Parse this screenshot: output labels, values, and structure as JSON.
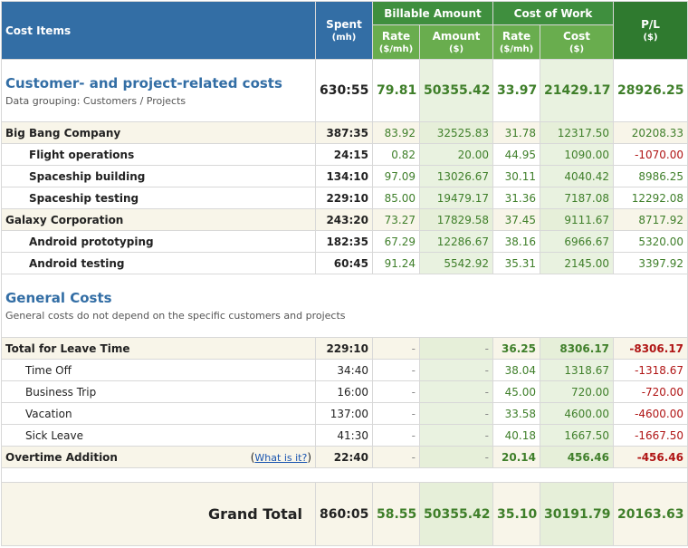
{
  "header": {
    "cost_items": "Cost Items",
    "spent": "Spent",
    "spent_unit": "(mh)",
    "billable_amount": "Billable Amount",
    "cost_of_work": "Cost of Work",
    "pl": "P/L",
    "pl_unit": "($)",
    "rate": "Rate",
    "rate_unit": "($/mh)",
    "amount": "Amount",
    "amount_unit": "($)",
    "rate2": "Rate",
    "rate2_unit": "($/mh)",
    "cost": "Cost",
    "cost_unit": "($)"
  },
  "customer_section": {
    "title": "Customer- and project-related costs",
    "subtitle": "Data grouping: Customers / Projects",
    "spent": "630:55",
    "rate": "79.81",
    "amount": "50355.42",
    "cost_rate": "33.97",
    "cost": "21429.17",
    "pl": "28926.25"
  },
  "customer_rows": [
    {
      "name": "Big Bang Company",
      "level": 0,
      "spent": "387:35",
      "rate": "83.92",
      "amount": "32525.83",
      "cost_rate": "31.78",
      "cost": "12317.50",
      "pl": "20208.33",
      "pl_neg": false
    },
    {
      "name": "Flight operations",
      "level": 1,
      "spent": "24:15",
      "rate": "0.82",
      "amount": "20.00",
      "cost_rate": "44.95",
      "cost": "1090.00",
      "pl": "-1070.00",
      "pl_neg": true
    },
    {
      "name": "Spaceship building",
      "level": 1,
      "spent": "134:10",
      "rate": "97.09",
      "amount": "13026.67",
      "cost_rate": "30.11",
      "cost": "4040.42",
      "pl": "8986.25",
      "pl_neg": false
    },
    {
      "name": "Spaceship testing",
      "level": 1,
      "spent": "229:10",
      "rate": "85.00",
      "amount": "19479.17",
      "cost_rate": "31.36",
      "cost": "7187.08",
      "pl": "12292.08",
      "pl_neg": false
    },
    {
      "name": "Galaxy Corporation",
      "level": 0,
      "spent": "243:20",
      "rate": "73.27",
      "amount": "17829.58",
      "cost_rate": "37.45",
      "cost": "9111.67",
      "pl": "8717.92",
      "pl_neg": false
    },
    {
      "name": "Android prototyping",
      "level": 1,
      "spent": "182:35",
      "rate": "67.29",
      "amount": "12286.67",
      "cost_rate": "38.16",
      "cost": "6966.67",
      "pl": "5320.00",
      "pl_neg": false
    },
    {
      "name": "Android testing",
      "level": 1,
      "spent": "60:45",
      "rate": "91.24",
      "amount": "5542.92",
      "cost_rate": "35.31",
      "cost": "2145.00",
      "pl": "3397.92",
      "pl_neg": false
    }
  ],
  "general_section": {
    "title": "General Costs",
    "subtitle": "General costs do not depend on the specific customers and projects"
  },
  "leave_total": {
    "name": "Total for Leave Time",
    "spent": "229:10",
    "rate": "-",
    "amount": "-",
    "cost_rate": "36.25",
    "cost": "8306.17",
    "pl": "-8306.17"
  },
  "leave_rows": [
    {
      "name": "Time Off",
      "spent": "34:40",
      "rate": "-",
      "amount": "-",
      "cost_rate": "38.04",
      "cost": "1318.67",
      "pl": "-1318.67"
    },
    {
      "name": "Business Trip",
      "spent": "16:00",
      "rate": "-",
      "amount": "-",
      "cost_rate": "45.00",
      "cost": "720.00",
      "pl": "-720.00"
    },
    {
      "name": "Vacation",
      "spent": "137:00",
      "rate": "-",
      "amount": "-",
      "cost_rate": "33.58",
      "cost": "4600.00",
      "pl": "-4600.00"
    },
    {
      "name": "Sick Leave",
      "spent": "41:30",
      "rate": "-",
      "amount": "-",
      "cost_rate": "40.18",
      "cost": "1667.50",
      "pl": "-1667.50"
    }
  ],
  "overtime": {
    "name": "Overtime Addition",
    "link": "What is it?",
    "spent": "22:40",
    "rate": "-",
    "amount": "-",
    "cost_rate": "20.14",
    "cost": "456.46",
    "pl": "-456.46"
  },
  "grand_total": {
    "label": "Grand Total",
    "spent": "860:05",
    "rate": "58.55",
    "amount": "50355.42",
    "cost_rate": "35.10",
    "cost": "30191.79",
    "pl": "20163.63"
  },
  "colors": {
    "header_blue": "#336ea5",
    "header_green": "#3f8f3e",
    "value_green": "#3f7f2a",
    "negative_red": "#b01515"
  }
}
